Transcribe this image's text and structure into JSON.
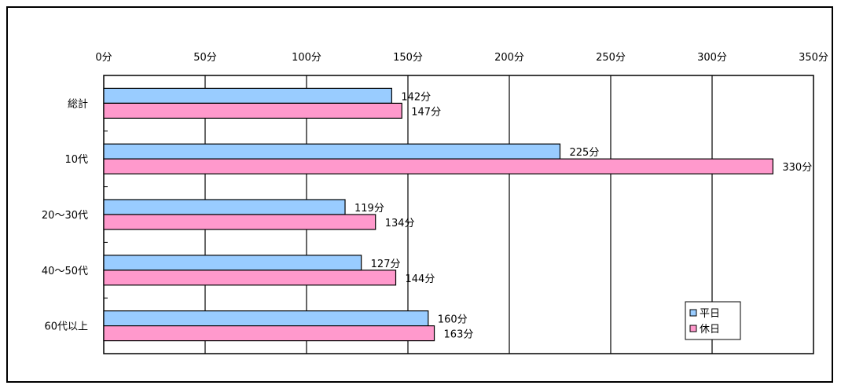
{
  "chart_data": {
    "type": "bar",
    "orientation": "horizontal",
    "title": "",
    "xlabel": "",
    "ylabel": "",
    "categories": [
      "総計",
      "10代",
      "20～30代",
      "40～50代",
      "60代以上"
    ],
    "series": [
      {
        "name": "平日",
        "values": [
          142,
          225,
          119,
          127,
          160
        ],
        "color": "#99ccff"
      },
      {
        "name": "休日",
        "values": [
          147,
          330,
          134,
          144,
          163
        ],
        "color": "#ff99cc"
      }
    ],
    "value_suffix": "分",
    "xlim": [
      0,
      350
    ],
    "x_ticks": [
      0,
      50,
      100,
      150,
      200,
      250,
      300,
      350
    ],
    "x_tick_labels": [
      "0分",
      "50分",
      "100分",
      "150分",
      "200分",
      "250分",
      "300分",
      "350分"
    ],
    "x_axis_position": "top",
    "grid": true,
    "legend": "bottom-right"
  }
}
